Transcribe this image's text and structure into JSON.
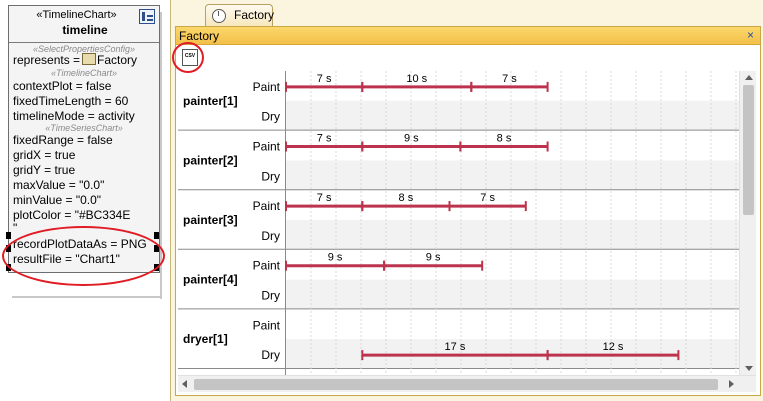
{
  "block": {
    "stereotype": "«TimelineChart»",
    "name": "timeline",
    "sub_select": "«SelectPropertiesConfig»",
    "sub_timeline": "«TimelineChart»",
    "sub_timeseries": "«TimeSeriesChart»",
    "represents_label": "represents =",
    "represents_value": "Factory",
    "context_plot": "contextPlot = false",
    "fixed_time_length": "fixedTimeLength = 60",
    "timeline_mode": "timelineMode = activity",
    "fixed_range": "fixedRange = false",
    "grid_x": "gridX = true",
    "grid_y": "gridY = true",
    "max_value": "maxValue = \"0.0\"",
    "min_value": "minValue = \"0.0\"",
    "plot_color": "plotColor = \"#BC334E",
    "plot_color_cont": "\"",
    "record_plot": "recordPlotDataAs = PNG",
    "result_file": "resultFile = \"Chart1\""
  },
  "window": {
    "tab_label": "Factory",
    "panel_title": "Factory",
    "close_symbol": "×",
    "csv_icon_text": "CSV"
  },
  "colors": {
    "plot_color": "#BC334E",
    "highlight": "#E01C24",
    "titlebar": "#F3C04A"
  },
  "icons": {
    "block_corner": "timeline-chart-icon",
    "represents": "factory-block-icon",
    "tab": "clock-icon",
    "toolbar": "export-csv-icon"
  },
  "chart_data": {
    "type": "timeline",
    "grid": true,
    "rows": [
      {
        "name": "painter[1]",
        "lanes": [
          {
            "label": "Paint",
            "segments": [
              {
                "start": 0,
                "duration": 7,
                "label": "7 s"
              },
              {
                "start": 7,
                "duration": 10,
                "label": "10 s"
              },
              {
                "start": 17,
                "duration": 7,
                "label": "7 s"
              }
            ]
          },
          {
            "label": "Dry",
            "segments": []
          }
        ]
      },
      {
        "name": "painter[2]",
        "lanes": [
          {
            "label": "Paint",
            "segments": [
              {
                "start": 0,
                "duration": 7,
                "label": "7 s"
              },
              {
                "start": 7,
                "duration": 9,
                "label": "9 s"
              },
              {
                "start": 16,
                "duration": 8,
                "label": "8 s"
              }
            ]
          },
          {
            "label": "Dry",
            "segments": []
          }
        ]
      },
      {
        "name": "painter[3]",
        "lanes": [
          {
            "label": "Paint",
            "segments": [
              {
                "start": 0,
                "duration": 7,
                "label": "7 s"
              },
              {
                "start": 7,
                "duration": 8,
                "label": "8 s"
              },
              {
                "start": 15,
                "duration": 7,
                "label": "7 s"
              }
            ]
          },
          {
            "label": "Dry",
            "segments": []
          }
        ]
      },
      {
        "name": "painter[4]",
        "lanes": [
          {
            "label": "Paint",
            "segments": [
              {
                "start": 0,
                "duration": 9,
                "label": "9 s"
              },
              {
                "start": 9,
                "duration": 9,
                "label": "9 s"
              }
            ]
          },
          {
            "label": "Dry",
            "segments": []
          }
        ]
      },
      {
        "name": "dryer[1]",
        "lanes": [
          {
            "label": "Paint",
            "segments": []
          },
          {
            "label": "Dry",
            "segments": [
              {
                "start": 7,
                "duration": 17,
                "label": "17 s"
              },
              {
                "start": 24,
                "duration": 12,
                "label": "12 s"
              }
            ]
          }
        ]
      }
    ]
  }
}
